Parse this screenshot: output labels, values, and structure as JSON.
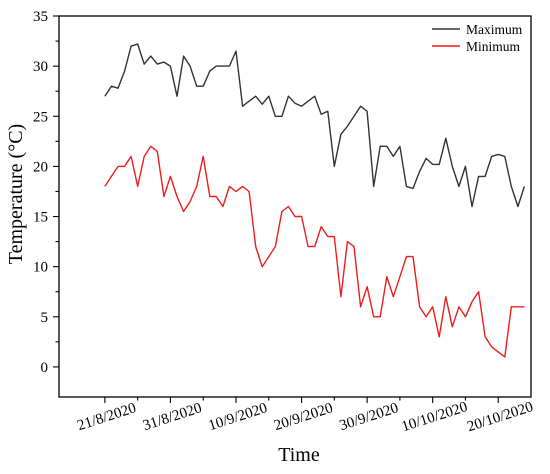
{
  "chart_data": {
    "type": "line",
    "xlabel": "Time",
    "ylabel": "Temperature (°C)",
    "ylim": [
      -3,
      35
    ],
    "yticks": [
      0,
      5,
      10,
      15,
      20,
      25,
      30,
      35
    ],
    "xlim": [
      "2020-08-14",
      "2020-10-25"
    ],
    "xticks": [
      "2020-08-21",
      "2020-08-31",
      "2020-09-10",
      "2020-09-20",
      "2020-09-30",
      "2020-10-10",
      "2020-10-20"
    ],
    "xtick_labels": [
      "21/8/2020",
      "31/8/2020",
      "10/9/2020",
      "20/9/2020",
      "30/9/2020",
      "10/10/2020",
      "20/10/2020"
    ],
    "grid": false,
    "legend_position": "top-right",
    "series": [
      {
        "name": "Maximum",
        "color": "#333333",
        "x": [
          "2020-08-21",
          "2020-08-22",
          "2020-08-23",
          "2020-08-24",
          "2020-08-25",
          "2020-08-26",
          "2020-08-27",
          "2020-08-28",
          "2020-08-29",
          "2020-08-30",
          "2020-08-31",
          "2020-09-01",
          "2020-09-02",
          "2020-09-03",
          "2020-09-04",
          "2020-09-05",
          "2020-09-06",
          "2020-09-07",
          "2020-09-08",
          "2020-09-09",
          "2020-09-10",
          "2020-09-11",
          "2020-09-12",
          "2020-09-13",
          "2020-09-14",
          "2020-09-15",
          "2020-09-16",
          "2020-09-17",
          "2020-09-18",
          "2020-09-19",
          "2020-09-20",
          "2020-09-21",
          "2020-09-22",
          "2020-09-23",
          "2020-09-24",
          "2020-09-25",
          "2020-09-26",
          "2020-09-27",
          "2020-09-28",
          "2020-09-29",
          "2020-09-30",
          "2020-10-01",
          "2020-10-02",
          "2020-10-03",
          "2020-10-04",
          "2020-10-05",
          "2020-10-06",
          "2020-10-07",
          "2020-10-08",
          "2020-10-09",
          "2020-10-10",
          "2020-10-11",
          "2020-10-12",
          "2020-10-13",
          "2020-10-14",
          "2020-10-15",
          "2020-10-16",
          "2020-10-17",
          "2020-10-18",
          "2020-10-19",
          "2020-10-20",
          "2020-10-21",
          "2020-10-22",
          "2020-10-23",
          "2020-10-24"
        ],
        "values": [
          27,
          28,
          27.8,
          29.5,
          32,
          32.2,
          30.2,
          31,
          30.2,
          30.4,
          30,
          27,
          31,
          30,
          28,
          28,
          29.5,
          30,
          30,
          30,
          31.5,
          26,
          26.5,
          27,
          26.2,
          27,
          25,
          25,
          27,
          26.3,
          26,
          26.5,
          27,
          25.2,
          25.5,
          20,
          23.2,
          24,
          25,
          26,
          25.5,
          18,
          22,
          22,
          21,
          22,
          18,
          17.8,
          19.5,
          20.8,
          20.2,
          20.2,
          22.8,
          20,
          18,
          20,
          16,
          19,
          19,
          21,
          21.2,
          21,
          18,
          16,
          18
        ]
      },
      {
        "name": "Minimum",
        "color": "#ee1c1c",
        "x": [
          "2020-08-21",
          "2020-08-22",
          "2020-08-23",
          "2020-08-24",
          "2020-08-25",
          "2020-08-26",
          "2020-08-27",
          "2020-08-28",
          "2020-08-29",
          "2020-08-30",
          "2020-08-31",
          "2020-09-01",
          "2020-09-02",
          "2020-09-03",
          "2020-09-04",
          "2020-09-05",
          "2020-09-06",
          "2020-09-07",
          "2020-09-08",
          "2020-09-09",
          "2020-09-10",
          "2020-09-11",
          "2020-09-12",
          "2020-09-13",
          "2020-09-14",
          "2020-09-15",
          "2020-09-16",
          "2020-09-17",
          "2020-09-18",
          "2020-09-19",
          "2020-09-20",
          "2020-09-21",
          "2020-09-22",
          "2020-09-23",
          "2020-09-24",
          "2020-09-25",
          "2020-09-26",
          "2020-09-27",
          "2020-09-28",
          "2020-09-29",
          "2020-09-30",
          "2020-10-01",
          "2020-10-02",
          "2020-10-03",
          "2020-10-04",
          "2020-10-05",
          "2020-10-06",
          "2020-10-07",
          "2020-10-08",
          "2020-10-09",
          "2020-10-10",
          "2020-10-11",
          "2020-10-12",
          "2020-10-13",
          "2020-10-14",
          "2020-10-15",
          "2020-10-16",
          "2020-10-17",
          "2020-10-18",
          "2020-10-19",
          "2020-10-20",
          "2020-10-21",
          "2020-10-22",
          "2020-10-23",
          "2020-10-24"
        ],
        "values": [
          18,
          19,
          20,
          20,
          21,
          18,
          21,
          22,
          21.5,
          17,
          19,
          17,
          15.5,
          16.5,
          18,
          21,
          17,
          17,
          16,
          18,
          17.5,
          18,
          17.5,
          12,
          10,
          11,
          12,
          15.5,
          16,
          15,
          15,
          12,
          12,
          14,
          13,
          13,
          7,
          12.5,
          12,
          6,
          8,
          5,
          5,
          9,
          7,
          9,
          11,
          11,
          6,
          5,
          6,
          3,
          7,
          4,
          6,
          5,
          6.5,
          7.5,
          3,
          2,
          1.5,
          1,
          6,
          6,
          6
        ]
      }
    ]
  }
}
